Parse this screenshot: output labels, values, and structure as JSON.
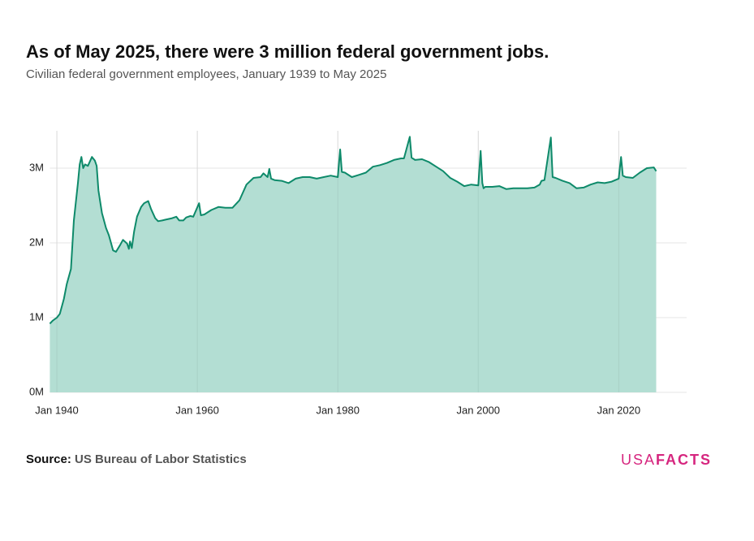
{
  "chart_data": {
    "type": "area",
    "title": "As of May 2025, there were 3 million federal government jobs.",
    "subtitle": "Civilian federal government employees, January 1939 to May 2025",
    "x": [
      "1939-01",
      "1939-06",
      "1940-01",
      "1940-06",
      "1941-01",
      "1941-06",
      "1942-01",
      "1942-06",
      "1943-01",
      "1943-04",
      "1943-07",
      "1943-10",
      "1944-01",
      "1944-06",
      "1945-01",
      "1945-06",
      "1945-09",
      "1945-12",
      "1946-06",
      "1947-01",
      "1947-06",
      "1948-01",
      "1948-06",
      "1949-01",
      "1949-06",
      "1950-01",
      "1950-04",
      "1950-06",
      "1950-09",
      "1951-01",
      "1951-06",
      "1952-01",
      "1952-06",
      "1953-01",
      "1953-06",
      "1954-01",
      "1954-06",
      "1955-01",
      "1955-06",
      "1956-06",
      "1957-01",
      "1957-06",
      "1958-01",
      "1958-06",
      "1959-01",
      "1959-06",
      "1960-04",
      "1960-07",
      "1961-01",
      "1962-01",
      "1963-01",
      "1964-01",
      "1965-01",
      "1966-01",
      "1967-01",
      "1968-01",
      "1969-01",
      "1969-06",
      "1970-01",
      "1970-04",
      "1970-07",
      "1971-01",
      "1972-01",
      "1973-01",
      "1974-01",
      "1975-01",
      "1976-01",
      "1977-01",
      "1978-01",
      "1979-01",
      "1980-01",
      "1980-05",
      "1980-08",
      "1981-01",
      "1982-01",
      "1983-01",
      "1984-01",
      "1985-01",
      "1986-01",
      "1987-01",
      "1988-01",
      "1989-01",
      "1989-06",
      "1990-04",
      "1990-07",
      "1991-01",
      "1992-01",
      "1993-01",
      "1994-01",
      "1995-01",
      "1996-01",
      "1997-01",
      "1998-01",
      "1999-01",
      "2000-01",
      "2000-05",
      "2000-08",
      "2000-10",
      "2001-01",
      "2002-01",
      "2003-01",
      "2004-01",
      "2005-01",
      "2006-01",
      "2007-01",
      "2008-01",
      "2008-10",
      "2009-01",
      "2009-06",
      "2010-05",
      "2010-08",
      "2011-01",
      "2012-01",
      "2013-01",
      "2014-01",
      "2015-01",
      "2016-01",
      "2017-01",
      "2018-01",
      "2019-01",
      "2020-01",
      "2020-05",
      "2020-08",
      "2021-01",
      "2022-01",
      "2023-01",
      "2024-01",
      "2025-01",
      "2025-05"
    ],
    "values": [
      920000,
      960000,
      1000000,
      1050000,
      1250000,
      1450000,
      1650000,
      2300000,
      2800000,
      3050000,
      3150000,
      3000000,
      3050000,
      3030000,
      3150000,
      3100000,
      3030000,
      2700000,
      2400000,
      2200000,
      2100000,
      1900000,
      1880000,
      1970000,
      2040000,
      1990000,
      1920000,
      2020000,
      1930000,
      2150000,
      2350000,
      2480000,
      2530000,
      2560000,
      2450000,
      2330000,
      2290000,
      2300000,
      2310000,
      2330000,
      2350000,
      2300000,
      2300000,
      2340000,
      2360000,
      2350000,
      2530000,
      2370000,
      2380000,
      2440000,
      2480000,
      2470000,
      2470000,
      2570000,
      2780000,
      2870000,
      2880000,
      2930000,
      2880000,
      2990000,
      2860000,
      2840000,
      2830000,
      2800000,
      2860000,
      2880000,
      2880000,
      2860000,
      2880000,
      2900000,
      2880000,
      3250000,
      2950000,
      2940000,
      2880000,
      2910000,
      2940000,
      3020000,
      3040000,
      3070000,
      3110000,
      3130000,
      3130000,
      3420000,
      3140000,
      3110000,
      3120000,
      3080000,
      3020000,
      2960000,
      2870000,
      2820000,
      2760000,
      2780000,
      2770000,
      3230000,
      2800000,
      2730000,
      2750000,
      2750000,
      2760000,
      2720000,
      2730000,
      2730000,
      2730000,
      2740000,
      2780000,
      2830000,
      2840000,
      3410000,
      2880000,
      2870000,
      2830000,
      2800000,
      2730000,
      2740000,
      2780000,
      2810000,
      2800000,
      2820000,
      2860000,
      3150000,
      2900000,
      2880000,
      2870000,
      2940000,
      3000000,
      3010000,
      2960000
    ],
    "color": "#0e8a6a",
    "area_color": "#b3ded3",
    "xlim": [
      "1939-01",
      "2029-09"
    ],
    "xticks": [
      {
        "value": "1940-01",
        "label": "Jan 1940"
      },
      {
        "value": "1960-01",
        "label": "Jan 1960"
      },
      {
        "value": "1980-01",
        "label": "Jan 1980"
      },
      {
        "value": "2000-01",
        "label": "Jan 2000"
      },
      {
        "value": "2020-01",
        "label": "Jan 2020"
      }
    ],
    "ylim": [
      0,
      3500000
    ],
    "yticks": [
      {
        "value": 0,
        "label": "0M"
      },
      {
        "value": 1000000,
        "label": "1M"
      },
      {
        "value": 2000000,
        "label": "2M"
      },
      {
        "value": 3000000,
        "label": "3M"
      }
    ],
    "grid": true
  },
  "source": {
    "label": "Source:",
    "text": "US Bureau of Labor Statistics"
  },
  "brand": [
    "USA",
    "FACTS"
  ]
}
